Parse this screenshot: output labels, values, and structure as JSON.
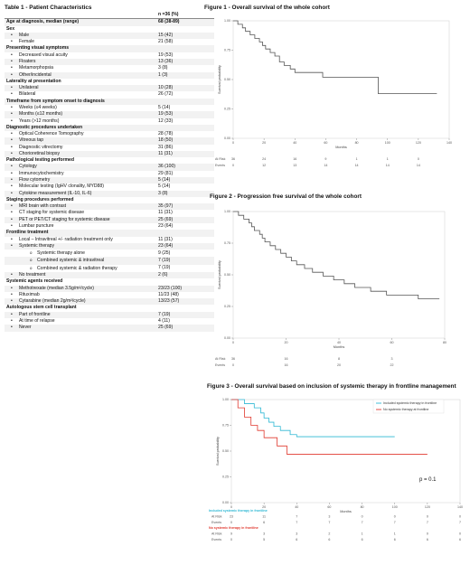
{
  "table": {
    "title": "Table 1 - Patient Characteristics",
    "rows": [
      {
        "label": "",
        "value": "n =36 (%)",
        "kind": "top"
      },
      {
        "label": "Age at diagnosis, median (range)",
        "value": "68 (38-89)",
        "kind": "h"
      },
      {
        "label": "Sex",
        "value": "",
        "kind": "h"
      },
      {
        "label": "Male",
        "value": "15 (42)",
        "kind": "b1"
      },
      {
        "label": "Female",
        "value": "21 (58)",
        "kind": "b1"
      },
      {
        "label": "Presenting visual symptoms",
        "value": "",
        "kind": "h"
      },
      {
        "label": "Decreased visual acuity",
        "value": "19 (53)",
        "kind": "b1"
      },
      {
        "label": "Floaters",
        "value": "13 (36)",
        "kind": "b1"
      },
      {
        "label": "Metamorphopsia",
        "value": "3 (8)",
        "kind": "b1"
      },
      {
        "label": "Other/incidental",
        "value": "1 (3)",
        "kind": "b1"
      },
      {
        "label": "Laterality at presentation",
        "value": "",
        "kind": "h"
      },
      {
        "label": "Unilateral",
        "value": "10 (28)",
        "kind": "b1"
      },
      {
        "label": "Bilateral",
        "value": "26 (72)",
        "kind": "b1"
      },
      {
        "label": "Timeframe from symptom onset to diagnosis",
        "value": "",
        "kind": "h"
      },
      {
        "label": "Weeks (≤4 weeks)",
        "value": "5 (14)",
        "kind": "b1"
      },
      {
        "label": "Months (≤12 months)",
        "value": "19 (53)",
        "kind": "b1"
      },
      {
        "label": "Years (>12 months)",
        "value": "12 (33)",
        "kind": "b1"
      },
      {
        "label": "Diagnostic procedures undertaken",
        "value": "",
        "kind": "h"
      },
      {
        "label": "Optical Coherence Tomography",
        "value": "28 (78)",
        "kind": "b1"
      },
      {
        "label": "Vitreous tap",
        "value": "18 (50)",
        "kind": "b1"
      },
      {
        "label": "Diagnostic vitrectomy",
        "value": "31 (86)",
        "kind": "b1"
      },
      {
        "label": "Chorioretinal biopsy",
        "value": "11 (31)",
        "kind": "b1"
      },
      {
        "label": "Pathological testing performed",
        "value": "",
        "kind": "h"
      },
      {
        "label": "Cytology",
        "value": "36 (100)",
        "kind": "b1"
      },
      {
        "label": "Immunocytochemistry",
        "value": "29 (81)",
        "kind": "b1"
      },
      {
        "label": "Flow cytometry",
        "value": "5 (14)",
        "kind": "b1"
      },
      {
        "label": "Molecular testing (IgHV clonality, MYD88)",
        "value": "5 (14)",
        "kind": "b1"
      },
      {
        "label": "Cytokine measurement (IL-10, IL-6)",
        "value": "3 (8)",
        "kind": "b1"
      },
      {
        "label": "Staging procedures performed",
        "value": "",
        "kind": "h"
      },
      {
        "label": "MRI brain with contrast",
        "value": "35 (97)",
        "kind": "b1"
      },
      {
        "label": "CT staging for systemic disease",
        "value": "11 (31)",
        "kind": "b1"
      },
      {
        "label": "PET or PET/CT staging for systemic disease",
        "value": "25 (69)",
        "kind": "b1"
      },
      {
        "label": "Lumbar puncture",
        "value": "23 (64)",
        "kind": "b1"
      },
      {
        "label": "Frontline treatment",
        "value": "",
        "kind": "h"
      },
      {
        "label": "Local – Intravitreal +/- radiation treatment only",
        "value": "11 (31)",
        "kind": "b1"
      },
      {
        "label": "Systemic therapy",
        "value": "23 (64)",
        "kind": "b1"
      },
      {
        "label": "Systemic therapy alone",
        "value": "9 (25)",
        "kind": "b2"
      },
      {
        "label": "Combined systemic & intravitreal",
        "value": "7 (19)",
        "kind": "b2"
      },
      {
        "label": "Combined systemic & radiation therapy",
        "value": "7 (19)",
        "kind": "b2"
      },
      {
        "label": "No treatment",
        "value": "2 (6)",
        "kind": "b1"
      },
      {
        "label": "Systemic agents received",
        "value": "",
        "kind": "h"
      },
      {
        "label": "Methotrexate (median 3.5g/m²/cycle)",
        "value": "23/23 (100)",
        "kind": "b1"
      },
      {
        "label": "Rituximab",
        "value": "11/23 (48)",
        "kind": "b1"
      },
      {
        "label": "Cytarabine (median 2g/m²/cycle)",
        "value": "13/23 (57)",
        "kind": "b1"
      },
      {
        "label": "Autologous stem cell transplant",
        "value": "",
        "kind": "h"
      },
      {
        "label": "Part of frontline",
        "value": "7 (19)",
        "kind": "b1"
      },
      {
        "label": "At time of relapse",
        "value": "4 (11)",
        "kind": "b1"
      },
      {
        "label": "Never",
        "value": "25 (69)",
        "kind": "b1"
      }
    ]
  },
  "figures": {
    "f1": {
      "title": "Figure 1 - Overall survival of the whole cohort"
    },
    "f2": {
      "title": "Figure 2 - Progression free survival of the whole cohort"
    },
    "f3": {
      "title": "Figure 3 - Overall survival based on inclusion of systemic therapy in frontline management"
    }
  },
  "chart_data": [
    {
      "type": "line",
      "title": "Figure 1 - Overall survival of the whole cohort",
      "xlabel": "Months",
      "ylabel": "Survival probability",
      "xlim": [
        0,
        140
      ],
      "ylim": [
        0,
        1
      ],
      "xticks": [
        0,
        20,
        40,
        60,
        80,
        100,
        120,
        140
      ],
      "yticks": [
        0.0,
        0.25,
        0.5,
        0.75,
        1.0
      ],
      "series": [
        {
          "color": "#555555",
          "steps": [
            [
              0,
              1.0
            ],
            [
              3,
              0.97
            ],
            [
              6,
              0.94
            ],
            [
              8,
              0.91
            ],
            [
              11,
              0.88
            ],
            [
              14,
              0.85
            ],
            [
              17,
              0.82
            ],
            [
              19,
              0.79
            ],
            [
              21,
              0.76
            ],
            [
              24,
              0.73
            ],
            [
              27,
              0.7
            ],
            [
              30,
              0.65
            ],
            [
              33,
              0.62
            ],
            [
              37,
              0.59
            ],
            [
              40,
              0.56
            ],
            [
              58,
              0.52
            ],
            [
              94,
              0.38
            ],
            [
              132,
              0.38
            ]
          ]
        }
      ],
      "risk_table": {
        "rows": [
          {
            "label": "At Risk",
            "values": [
              36,
              24,
              16,
              9,
              1,
              1,
              0
            ]
          },
          {
            "label": "Events",
            "values": [
              0,
              12,
              13,
              14,
              14,
              14,
              14
            ]
          }
        ],
        "x": [
          0,
          20,
          40,
          60,
          80,
          100,
          120
        ]
      }
    },
    {
      "type": "line",
      "title": "Figure 2 - Progression free survival of the whole cohort",
      "xlabel": "Months",
      "ylabel": "Survival probability",
      "xlim": [
        0,
        80
      ],
      "ylim": [
        0,
        1
      ],
      "xticks": [
        0,
        20,
        40,
        60,
        80
      ],
      "yticks": [
        0.0,
        0.25,
        0.5,
        0.75,
        1.0
      ],
      "series": [
        {
          "color": "#555555",
          "steps": [
            [
              0,
              1.0
            ],
            [
              2,
              0.97
            ],
            [
              4,
              0.94
            ],
            [
              6,
              0.91
            ],
            [
              7,
              0.88
            ],
            [
              8,
              0.85
            ],
            [
              10,
              0.82
            ],
            [
              11,
              0.79
            ],
            [
              12,
              0.76
            ],
            [
              14,
              0.73
            ],
            [
              16,
              0.7
            ],
            [
              18,
              0.67
            ],
            [
              20,
              0.64
            ],
            [
              22,
              0.61
            ],
            [
              24,
              0.58
            ],
            [
              27,
              0.55
            ],
            [
              30,
              0.52
            ],
            [
              34,
              0.49
            ],
            [
              38,
              0.46
            ],
            [
              42,
              0.43
            ],
            [
              46,
              0.4
            ],
            [
              52,
              0.37
            ],
            [
              58,
              0.34
            ],
            [
              70,
              0.31
            ],
            [
              78,
              0.31
            ]
          ]
        }
      ],
      "risk_table": {
        "rows": [
          {
            "label": "At Risk",
            "values": [
              36,
              16,
              8,
              3
            ]
          },
          {
            "label": "Events",
            "values": [
              0,
              16,
              20,
              22
            ]
          }
        ],
        "x": [
          0,
          20,
          40,
          60
        ]
      }
    },
    {
      "type": "line",
      "title": "Figure 3 - Overall survival based on inclusion of systemic therapy in frontline management",
      "xlabel": "Months",
      "ylabel": "Survival probability",
      "xlim": [
        0,
        140
      ],
      "ylim": [
        0,
        1
      ],
      "xticks": [
        0,
        20,
        40,
        60,
        80,
        100,
        120,
        140
      ],
      "yticks": [
        0.0,
        0.25,
        0.5,
        0.75,
        1.0
      ],
      "annotation": "p = 0.1",
      "legend_position": "top-right",
      "series": [
        {
          "name": "Included systemic therapy in frontline",
          "color": "#2eb8d4",
          "steps": [
            [
              0,
              1.0
            ],
            [
              8,
              0.96
            ],
            [
              14,
              0.92
            ],
            [
              18,
              0.87
            ],
            [
              20,
              0.82
            ],
            [
              23,
              0.78
            ],
            [
              26,
              0.74
            ],
            [
              30,
              0.7
            ],
            [
              36,
              0.66
            ],
            [
              40,
              0.64
            ],
            [
              100,
              0.64
            ]
          ]
        },
        {
          "name": "No systemic therapy at frontline",
          "color": "#e0392f",
          "steps": [
            [
              0,
              1.0
            ],
            [
              4,
              0.92
            ],
            [
              8,
              0.83
            ],
            [
              12,
              0.75
            ],
            [
              16,
              0.7
            ],
            [
              20,
              0.63
            ],
            [
              28,
              0.55
            ],
            [
              34,
              0.47
            ],
            [
              94,
              0.47
            ],
            [
              120,
              0.47
            ]
          ]
        }
      ],
      "risk_table": {
        "x": [
          0,
          20,
          40,
          60,
          80,
          100,
          120,
          140
        ],
        "groups": [
          {
            "name": "Included systemic therapy in frontline",
            "color": "#2eb8d4",
            "rows": [
              {
                "label": "At Risk",
                "values": [
                  23,
                  11,
                  7,
                  3,
                  0,
                  0,
                  0,
                  0
                ]
              },
              {
                "label": "Events",
                "values": [
                  0,
                  6,
                  7,
                  7,
                  7,
                  7,
                  7,
                  7
                ]
              }
            ]
          },
          {
            "name": "No systemic therapy in frontline",
            "color": "#e0392f",
            "rows": [
              {
                "label": "At Risk",
                "values": [
                  9,
                  3,
                  3,
                  2,
                  1,
                  1,
                  0,
                  0
                ]
              },
              {
                "label": "Events",
                "values": [
                  0,
                  5,
                  6,
                  6,
                  6,
                  6,
                  6,
                  6
                ]
              }
            ]
          }
        ]
      }
    }
  ]
}
